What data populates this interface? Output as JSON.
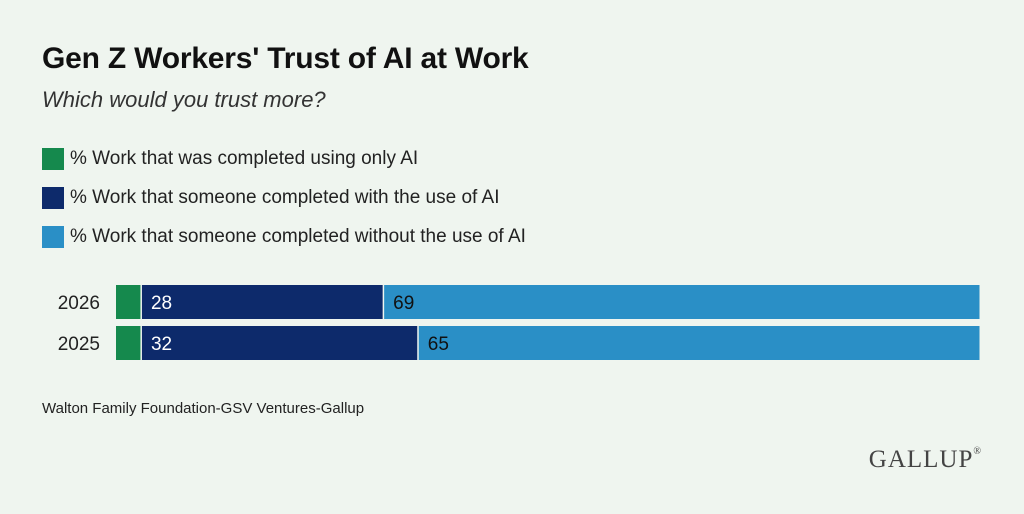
{
  "header": {
    "title": "Gen Z Workers' Trust of AI at Work",
    "subtitle": "Which would you trust more?"
  },
  "colors": {
    "only_ai": "#15894d",
    "with_ai": "#0d2a6b",
    "without_ai": "#2a8fc6",
    "background": "#eff5ef"
  },
  "legend": [
    {
      "label": "% Work that was completed using only AI",
      "color": "#15894d"
    },
    {
      "label": "% Work that someone completed with the use of AI",
      "color": "#0d2a6b"
    },
    {
      "label": "% Work that someone completed without the use of AI",
      "color": "#2a8fc6"
    }
  ],
  "chart_data": {
    "type": "bar",
    "orientation": "horizontal",
    "stacked": true,
    "title": "Gen Z Workers' Trust of AI at Work",
    "subtitle": "Which would you trust more?",
    "categories": [
      "2026",
      "2025"
    ],
    "series": [
      {
        "name": "% Work that was completed using only AI",
        "values": [
          3,
          3
        ],
        "labels": [
          "",
          ""
        ]
      },
      {
        "name": "% Work that someone completed with the use of AI",
        "values": [
          28,
          32
        ],
        "labels": [
          "28",
          "32"
        ]
      },
      {
        "name": "% Work that someone completed without the use of AI",
        "values": [
          69,
          65
        ],
        "labels": [
          "69",
          "65"
        ]
      }
    ],
    "xlim": [
      0,
      100
    ],
    "xlabel": "",
    "ylabel": "",
    "grid": false
  },
  "footer": {
    "source": "Walton Family Foundation-GSV Ventures-Gallup",
    "logo": "GALLUP"
  }
}
